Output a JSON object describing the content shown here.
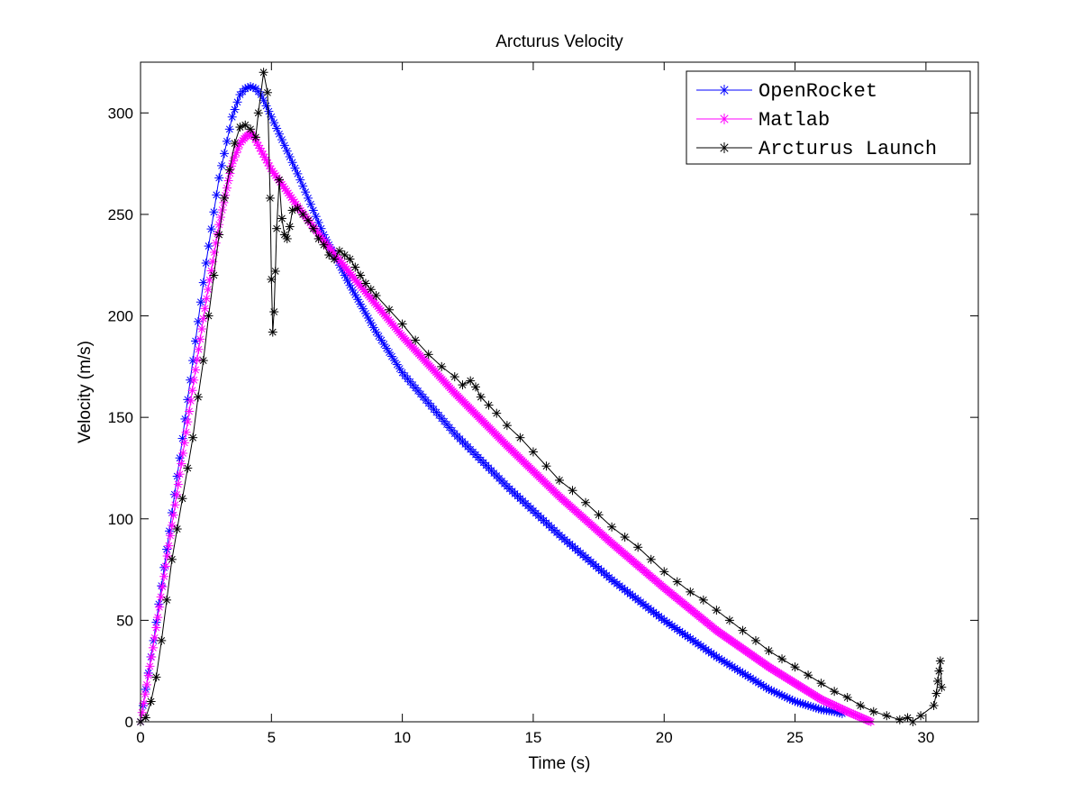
{
  "chart_data": {
    "type": "line",
    "title": "Arcturus Velocity",
    "xlabel": "Time (s)",
    "ylabel": "Velocity (m/s)",
    "xlim": [
      0,
      32
    ],
    "ylim": [
      0,
      325
    ],
    "xticks": [
      0,
      5,
      10,
      15,
      20,
      25,
      30
    ],
    "yticks": [
      0,
      50,
      100,
      150,
      200,
      250,
      300
    ],
    "grid": false,
    "legend_location": "top-right",
    "series": [
      {
        "name": "OpenRocket",
        "color": "#0000ff",
        "marker": "asterisk",
        "step": 0.1,
        "x": [
          0,
          0.5,
          1,
          1.5,
          2,
          2.5,
          3,
          3.5,
          3.8,
          4.0,
          4.2,
          4.4,
          4.6,
          5,
          6,
          7,
          8,
          9,
          10,
          12,
          14,
          16,
          18,
          20,
          22,
          24,
          25,
          26,
          26.5,
          26.8
        ],
        "y": [
          0,
          40,
          85,
          130,
          178,
          226,
          268,
          298,
          309,
          312,
          313,
          312,
          309,
          298,
          270,
          240,
          215,
          192,
          172,
          142,
          116,
          92,
          70,
          50,
          32,
          16,
          10,
          6,
          5,
          4
        ]
      },
      {
        "name": "Matlab",
        "color": "#ff00ff",
        "marker": "asterisk",
        "step": 0.06,
        "x": [
          0,
          0.5,
          1,
          1.5,
          2,
          2.5,
          3,
          3.5,
          3.8,
          4.0,
          4.2,
          4.3,
          4.5,
          5,
          6,
          7,
          8,
          10,
          12,
          14,
          16,
          18,
          20,
          22,
          24,
          26,
          27,
          27.9
        ],
        "y": [
          0,
          38,
          80,
          122,
          165,
          207,
          245,
          275,
          285,
          288,
          290,
          289,
          284,
          272,
          254,
          237,
          221,
          190,
          162,
          136,
          111,
          88,
          66,
          45,
          27,
          11,
          5,
          0
        ]
      },
      {
        "name": "Arcturus Launch",
        "color": "#000000",
        "marker": "asterisk",
        "x": [
          0,
          0.2,
          0.4,
          0.6,
          0.8,
          1.0,
          1.2,
          1.4,
          1.6,
          1.8,
          2.0,
          2.2,
          2.4,
          2.6,
          2.8,
          3.0,
          3.2,
          3.4,
          3.6,
          3.8,
          4.0,
          4.2,
          4.4,
          4.5,
          4.7,
          4.85,
          4.95,
          5.0,
          5.05,
          5.1,
          5.15,
          5.2,
          5.3,
          5.4,
          5.5,
          5.6,
          5.7,
          5.8,
          6.0,
          6.2,
          6.4,
          6.6,
          6.8,
          7.0,
          7.2,
          7.4,
          7.6,
          7.8,
          8.0,
          8.2,
          8.4,
          8.6,
          8.8,
          9.0,
          9.5,
          10.0,
          10.5,
          11.0,
          11.5,
          12.0,
          12.3,
          12.6,
          12.8,
          13.0,
          13.3,
          13.6,
          14.0,
          14.5,
          15.0,
          15.5,
          16.0,
          16.5,
          17.0,
          17.5,
          18.0,
          18.5,
          19.0,
          19.5,
          20.0,
          20.5,
          21.0,
          21.5,
          22.0,
          22.5,
          23.0,
          23.5,
          24.0,
          24.5,
          25.0,
          25.5,
          26.0,
          26.5,
          27.0,
          27.5,
          28.0,
          28.5,
          29.0,
          29.3,
          29.5,
          29.8,
          30.3,
          30.4,
          30.45,
          30.5,
          30.55,
          30.6
        ],
        "y": [
          0,
          2,
          10,
          22,
          40,
          60,
          80,
          95,
          110,
          125,
          140,
          160,
          178,
          200,
          220,
          240,
          258,
          272,
          285,
          293,
          294,
          292,
          288,
          300,
          320,
          310,
          258,
          218,
          192,
          202,
          222,
          243,
          267,
          248,
          240,
          238,
          244,
          252,
          253,
          250,
          247,
          243,
          238,
          235,
          230,
          228,
          232,
          230,
          228,
          224,
          220,
          216,
          213,
          210,
          203,
          196,
          188,
          181,
          175,
          170,
          166,
          168,
          165,
          160,
          156,
          152,
          146,
          140,
          133,
          126,
          119,
          114,
          108,
          102,
          96,
          91,
          86,
          80,
          74,
          69,
          64,
          60,
          55,
          50,
          45,
          40,
          35,
          31,
          27,
          23,
          19,
          15,
          12,
          8,
          5,
          3,
          1,
          2,
          0,
          3,
          8,
          14,
          20,
          25,
          30,
          17
        ]
      }
    ]
  }
}
